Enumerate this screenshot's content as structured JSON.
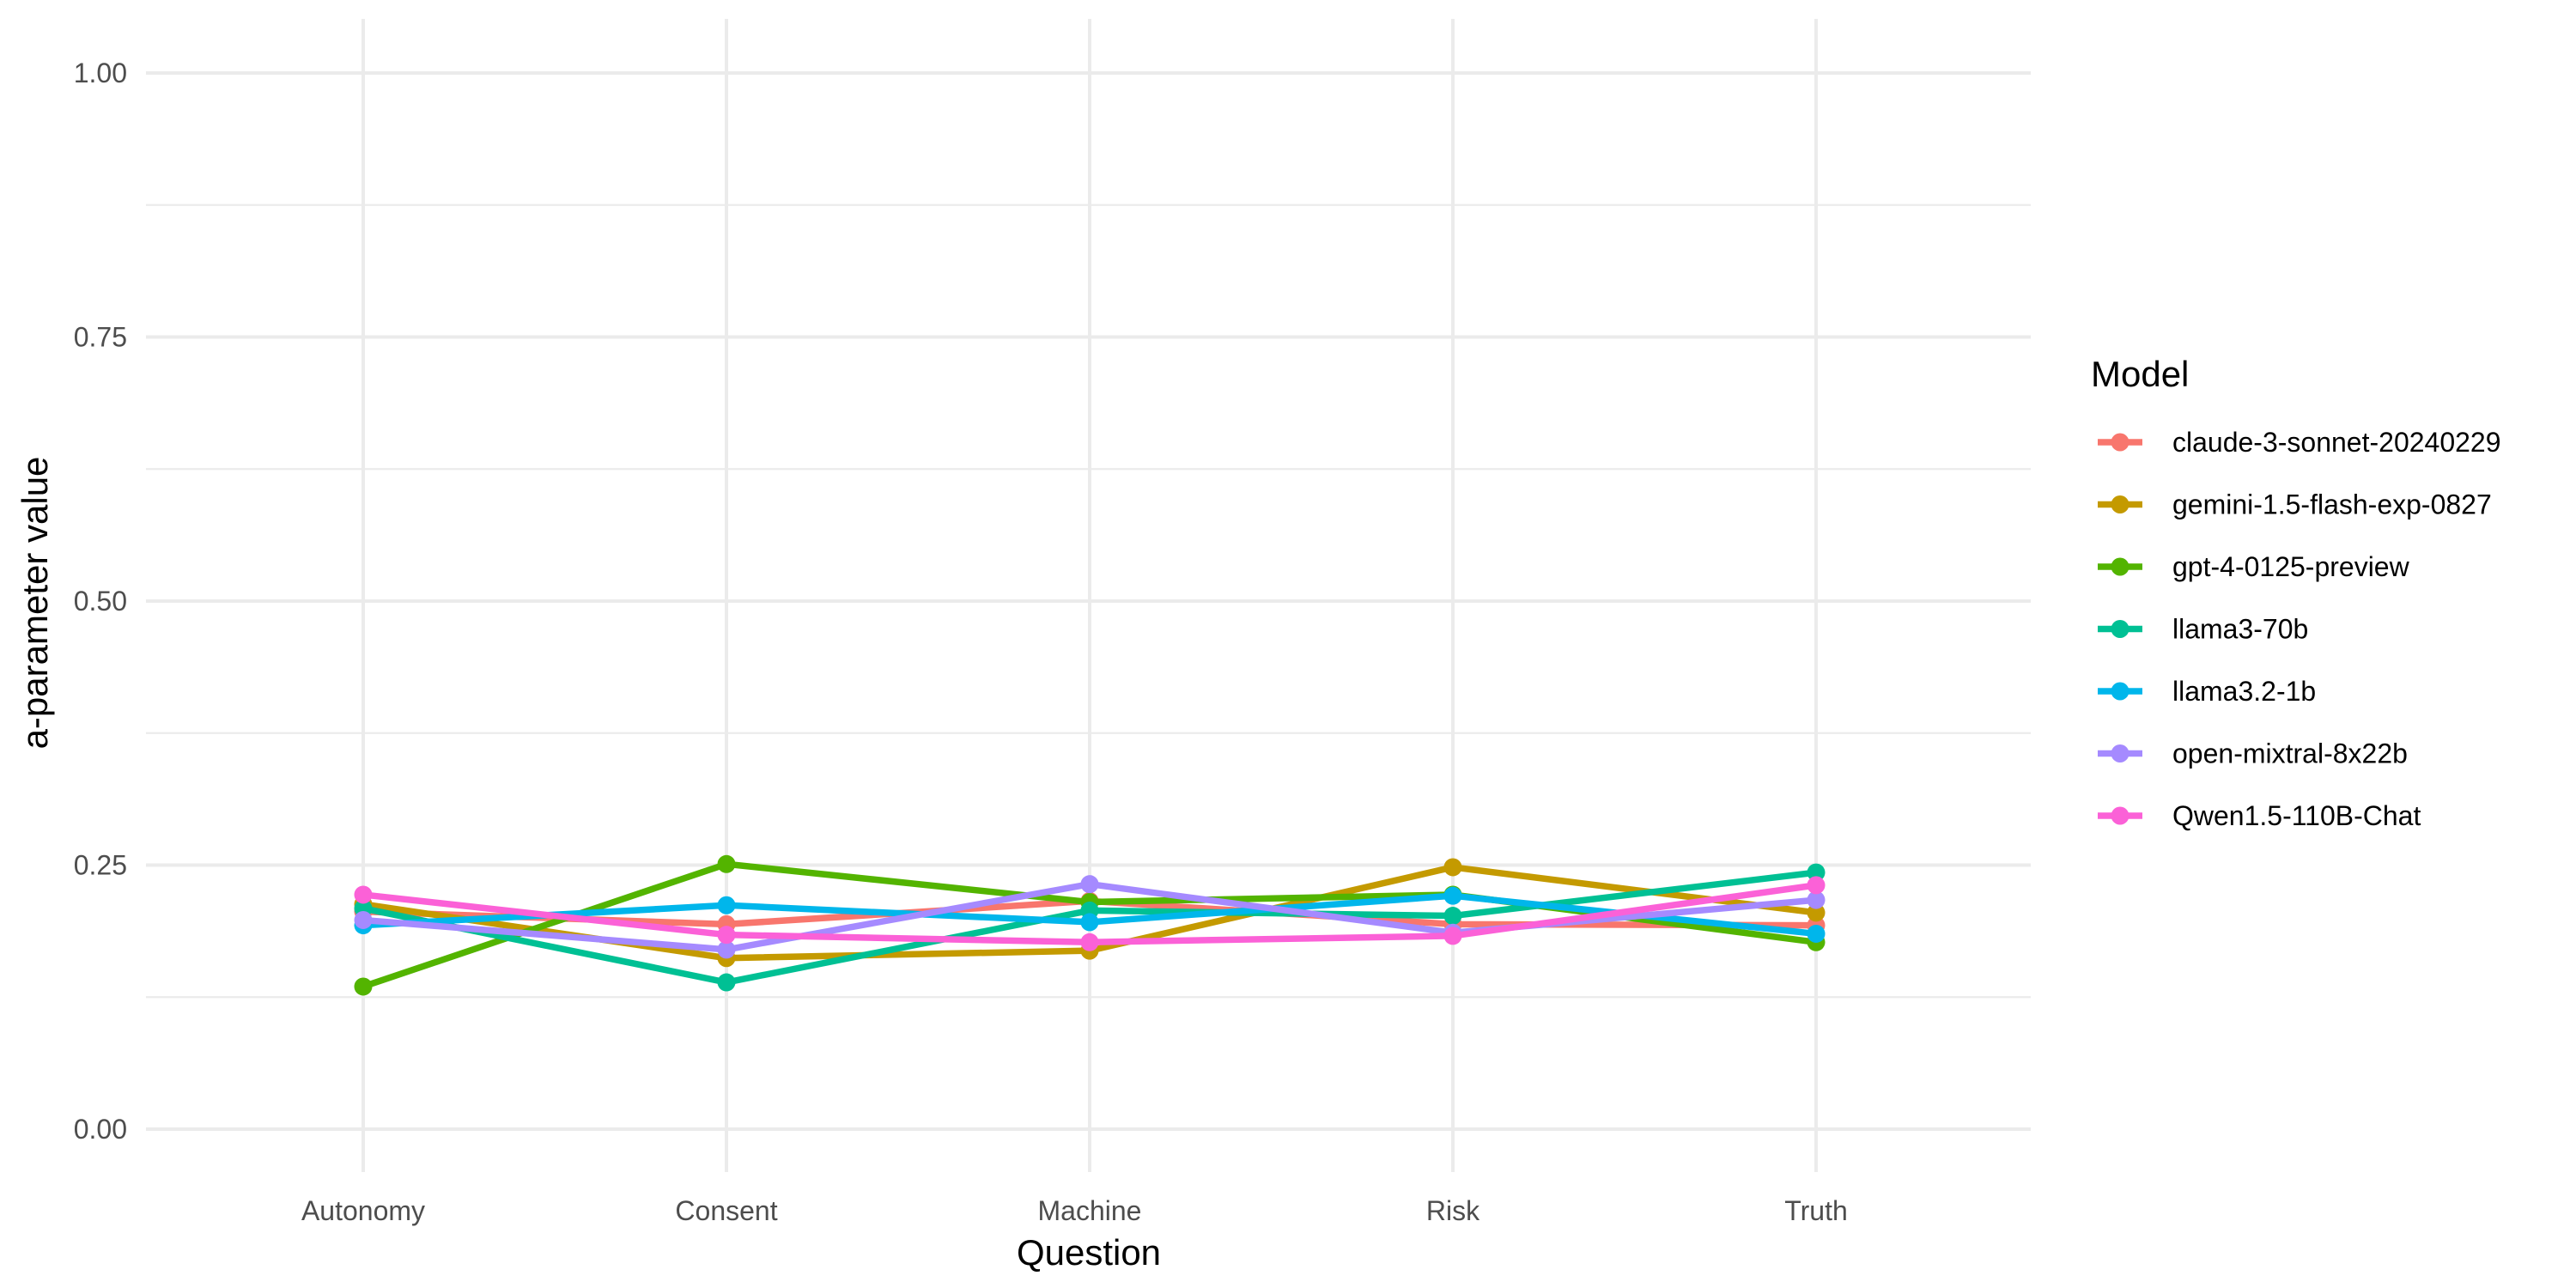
{
  "chart_data": {
    "type": "line",
    "title": "",
    "xlabel": "Question",
    "ylabel": "a-parameter value",
    "categories": [
      "Autonomy",
      "Consent",
      "Machine",
      "Risk",
      "Truth"
    ],
    "ylim": [
      -0.05,
      1.05
    ],
    "yticks": [
      0.0,
      0.25,
      0.5,
      0.75,
      1.0
    ],
    "ytick_labels": [
      "0.00",
      "0.25",
      "0.50",
      "0.75",
      "1.00"
    ],
    "grid": true,
    "legend": {
      "title": "Model",
      "position": "right"
    },
    "series": [
      {
        "name": "claude-3-sonnet-20240229",
        "color": "#F8766D",
        "values": [
          0.206,
          0.194,
          0.216,
          0.194,
          0.193
        ]
      },
      {
        "name": "gemini-1.5-flash-exp-0827",
        "color": "#C49A00",
        "values": [
          0.213,
          0.162,
          0.169,
          0.248,
          0.205
        ]
      },
      {
        "name": "gpt-4-0125-preview",
        "color": "#53B400",
        "values": [
          0.135,
          0.251,
          0.215,
          0.222,
          0.177
        ]
      },
      {
        "name": "llama3-70b",
        "color": "#00C094",
        "values": [
          0.209,
          0.139,
          0.207,
          0.202,
          0.243
        ]
      },
      {
        "name": "llama3.2-1b",
        "color": "#00B6EB",
        "values": [
          0.193,
          0.212,
          0.196,
          0.221,
          0.185
        ]
      },
      {
        "name": "open-mixtral-8x22b",
        "color": "#A58AFF",
        "values": [
          0.198,
          0.17,
          0.232,
          0.186,
          0.217
        ]
      },
      {
        "name": "Qwen1.5-110B-Chat",
        "color": "#FB61D7",
        "values": [
          0.222,
          0.184,
          0.177,
          0.183,
          0.231
        ]
      }
    ]
  }
}
